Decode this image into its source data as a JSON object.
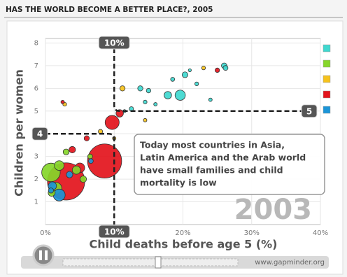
{
  "chart_data": {
    "type": "bubble",
    "title": "HAS THE WORLD BECOME A BETTER PLACE?, 2005",
    "x_label": "Child deaths before age 5 (%)",
    "y_label": "Children per women",
    "year": "2003",
    "annotation_lines": [
      "Today most countries in Asia,",
      "Latin America and the Arab world",
      "have small families and child",
      "mortality is low"
    ],
    "xlim": [
      0,
      40
    ],
    "xticks": [
      {
        "value": 0,
        "label": "0%"
      },
      {
        "value": 10,
        "label": "10%"
      },
      {
        "value": 20,
        "label": "20%"
      },
      {
        "value": 30,
        "label": "30%"
      },
      {
        "value": 40,
        "label": "40%"
      }
    ],
    "ylim": [
      0,
      8.2
    ],
    "yticks": [
      1,
      2,
      3,
      4,
      5,
      6,
      7,
      8
    ],
    "grid": true,
    "reference_lines": {
      "x": {
        "value": 10,
        "label": "10%"
      },
      "y_upper": {
        "value": 5,
        "label": "5"
      },
      "y_lower": {
        "value": 4,
        "label": "4"
      }
    },
    "series": [
      {
        "color": "#3fd8cf",
        "x": [
          20.3,
          19.6,
          17.8,
          13.8,
          12.5,
          26,
          26.2,
          22,
          16,
          15,
          24,
          14.5,
          18.5,
          11.5,
          21
        ],
        "y": [
          6.6,
          5.7,
          5.7,
          6.0,
          5.1,
          7.0,
          6.9,
          6.2,
          5.3,
          5.9,
          5.5,
          5.4,
          6.4,
          5.0,
          6.8
        ],
        "sizes": [
          14,
          70,
          30,
          10,
          5,
          12,
          8,
          3,
          2,
          6,
          2,
          3,
          4,
          1,
          1
        ]
      },
      {
        "color": "#86d62a",
        "x": [
          0.8,
          2,
          4.5,
          1.5,
          5.5,
          3,
          0.9,
          6.5
        ],
        "y": [
          2.3,
          2.6,
          2.4,
          1.6,
          2.0,
          3.2,
          1.4,
          3.0
        ],
        "sizes": [
          280,
          60,
          40,
          100,
          20,
          15,
          25,
          8
        ]
      },
      {
        "color": "#f6c21c",
        "x": [
          2.8,
          11.2,
          23,
          8,
          14.5,
          10
        ],
        "y": [
          5.3,
          6.0,
          6.9,
          4.1,
          4.6,
          3.8
        ],
        "sizes": [
          3,
          10,
          3,
          5,
          2,
          2
        ]
      },
      {
        "color": "#e3141c",
        "x": [
          8.6,
          3,
          9.7,
          3.9,
          25,
          10.8,
          2.5,
          6,
          5
        ],
        "y": [
          2.8,
          1.9,
          4.5,
          3.3,
          6.8,
          4.9,
          5.4,
          3.8,
          2.5
        ],
        "sizes": [
          1070,
          1290,
          150,
          20,
          6,
          30,
          2,
          10,
          60
        ]
      },
      {
        "color": "#1b95d8",
        "x": [
          2,
          6.6,
          1,
          3.5,
          0.8
        ],
        "y": [
          1.3,
          2.8,
          1.7,
          2.2,
          1.5
        ],
        "sizes": [
          100,
          8,
          40,
          20,
          10
        ]
      }
    ]
  },
  "controls": {
    "url": "www.gapminder.org"
  }
}
